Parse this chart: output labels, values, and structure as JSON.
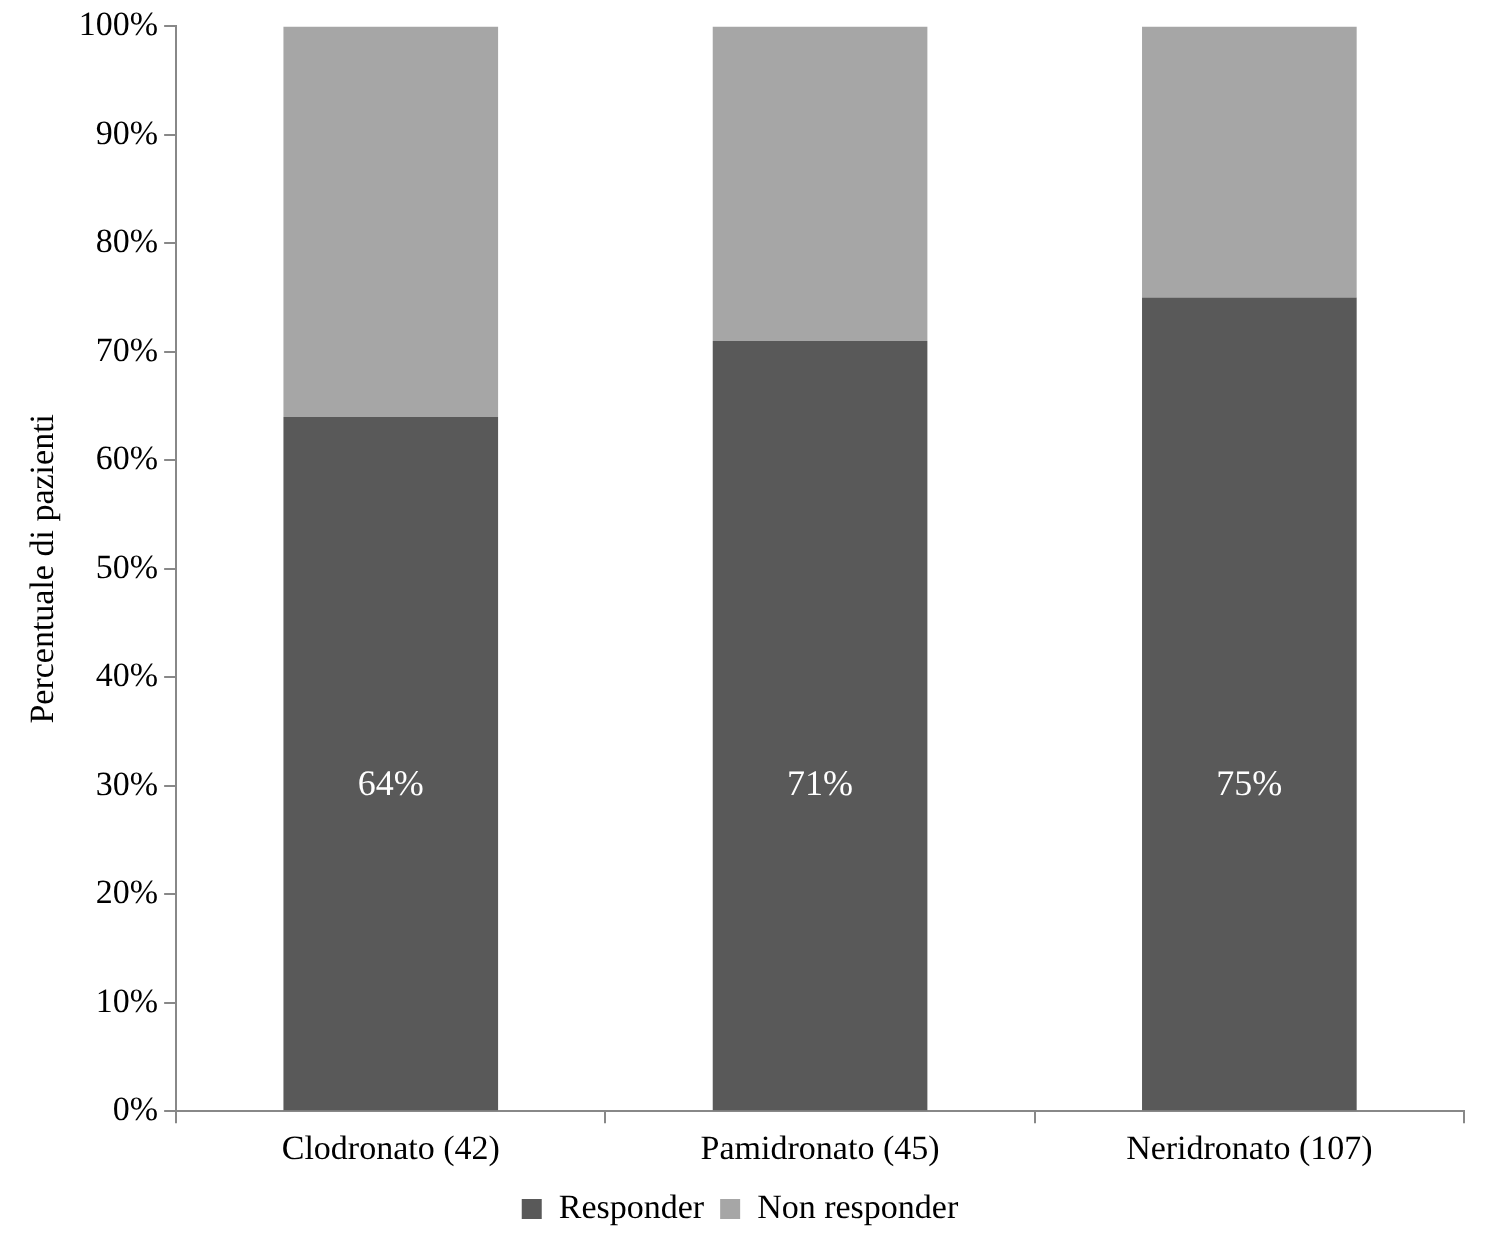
{
  "chart_data": {
    "type": "bar",
    "stacked": true,
    "ylabel": "Percentuale di pazienti",
    "categories": [
      "Clodronato (42)",
      "Pamidronato (45)",
      "Neridronato (107)"
    ],
    "series": [
      {
        "name": "Responder",
        "color": "#595959",
        "values": [
          64,
          71,
          75
        ],
        "value_labels": [
          "64%",
          "71%",
          "75%"
        ]
      },
      {
        "name": "Non responder",
        "color": "#a6a6a6",
        "values": [
          36,
          29,
          25
        ]
      }
    ],
    "ylim": [
      0,
      100
    ],
    "yticks": [
      {
        "value": 0,
        "label": "0%"
      },
      {
        "value": 10,
        "label": "10%"
      },
      {
        "value": 20,
        "label": "20%"
      },
      {
        "value": 30,
        "label": "30%"
      },
      {
        "value": 40,
        "label": "40%"
      },
      {
        "value": 50,
        "label": "50%"
      },
      {
        "value": 60,
        "label": "60%"
      },
      {
        "value": 70,
        "label": "70%"
      },
      {
        "value": 80,
        "label": "80%"
      },
      {
        "value": 90,
        "label": "90%"
      },
      {
        "value": 100,
        "label": "100%"
      }
    ],
    "grid": false,
    "legend": "bottom"
  }
}
